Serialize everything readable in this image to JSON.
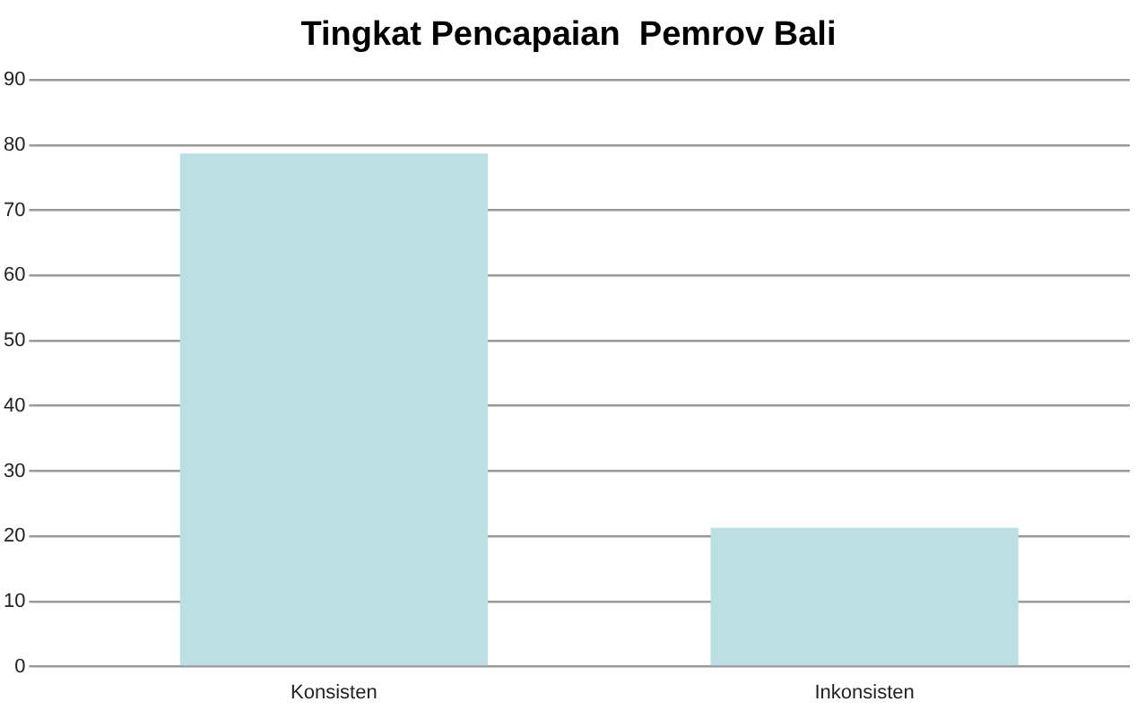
{
  "chart_data": {
    "type": "bar",
    "title": "Tingkat Pencapaian  Pemrov Bali",
    "categories": [
      "Konsisten",
      "Inkonsisten"
    ],
    "values": [
      78.7,
      21.3
    ],
    "color": "#bbdfe2",
    "ylim": [
      0,
      90
    ],
    "yticks": [
      0,
      10,
      20,
      30,
      40,
      50,
      60,
      70,
      80,
      90
    ],
    "grid": "y",
    "legend": false
  }
}
